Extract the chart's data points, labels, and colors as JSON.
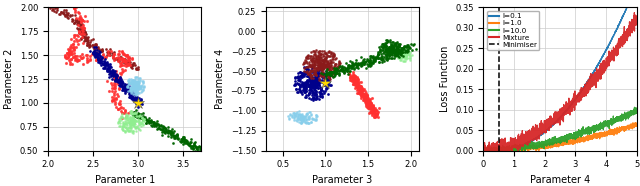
{
  "fig_width": 6.4,
  "fig_height": 1.86,
  "dpi": 100,
  "ax1": {
    "xlabel": "Parameter 1",
    "ylabel": "Parameter 2",
    "xlim": [
      2.0,
      3.7
    ],
    "ylim": [
      0.5,
      2.0
    ],
    "xticks": [
      2.0,
      2.5,
      3.0,
      3.5
    ],
    "yticks": [
      0.5,
      0.75,
      1.0,
      1.25,
      1.5,
      1.75,
      2.0
    ],
    "star_x": 3.0,
    "star_y": 1.0
  },
  "ax2": {
    "xlabel": "Parameter 3",
    "ylabel": "Parameter 4",
    "xlim": [
      0.3,
      2.1
    ],
    "ylim": [
      -1.5,
      0.3
    ],
    "xticks": [
      0.5,
      1.0,
      1.5,
      2.0
    ],
    "yticks": [
      -1.5,
      -1.25,
      -1.0,
      -0.75,
      -0.5,
      -0.25,
      0.0,
      0.25
    ],
    "star_x": 1.0,
    "star_y": -0.65
  },
  "ax3": {
    "xlabel": "Parameter 4",
    "ylabel": "Loss Function",
    "xlim": [
      0.0,
      5.0
    ],
    "ylim": [
      0.0,
      0.35
    ],
    "xticks": [
      0,
      1,
      2,
      3,
      4,
      5
    ],
    "yticks": [
      0.0,
      0.05,
      0.1,
      0.15,
      0.2,
      0.25,
      0.3,
      0.35
    ],
    "vline_x": 0.5,
    "colors": {
      "l01": "#1f77b4",
      "l10": "#ff7f0e",
      "l100": "#2ca02c",
      "mixture": "#d62728"
    }
  },
  "colors": {
    "red_dark": "#8B1A1A",
    "red_bright": "#FF3030",
    "blue_dark": "#00008B",
    "blue_light": "#87CEEB",
    "green_dark": "#006400",
    "green_light": "#90EE90",
    "orange_star": "#FFD700"
  }
}
